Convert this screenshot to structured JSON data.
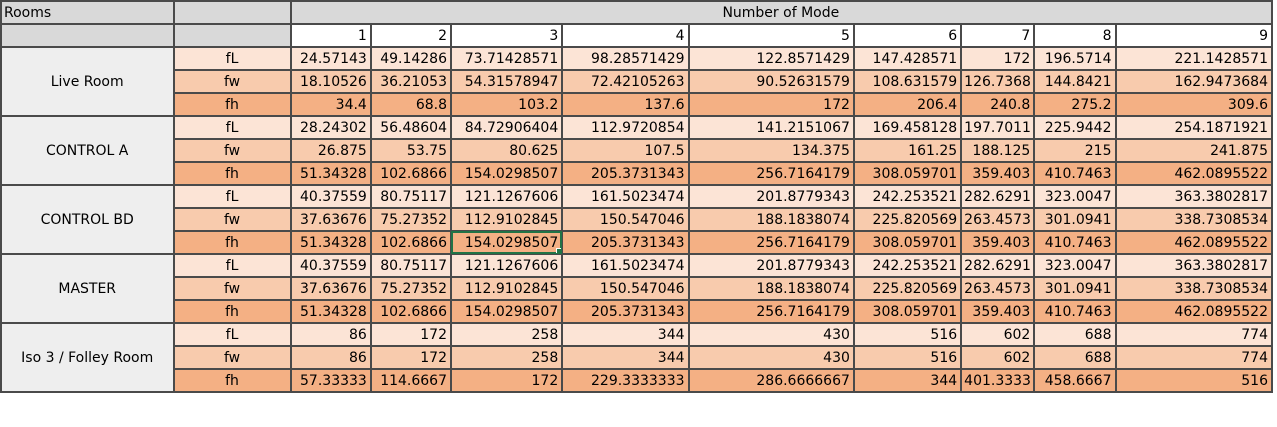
{
  "header": {
    "rooms_label": "Rooms",
    "mode_label": "Number of Mode",
    "mode_numbers": [
      "1",
      "2",
      "3",
      "4",
      "5",
      "6",
      "7",
      "8",
      "9"
    ]
  },
  "colors": {
    "fL": "#fce4d6",
    "fw": "#f8cbad",
    "fh": "#f4b084",
    "selection": "#217346"
  },
  "rooms": [
    {
      "name": "Live Room",
      "rows": [
        {
          "type": "fL",
          "values": [
            "24.57143",
            "49.14286",
            "73.71428571",
            "98.28571429",
            "122.8571429",
            "147.428571",
            "172",
            "196.5714",
            "221.1428571"
          ]
        },
        {
          "type": "fw",
          "values": [
            "18.10526",
            "36.21053",
            "54.31578947",
            "72.42105263",
            "90.52631579",
            "108.631579",
            "126.7368",
            "144.8421",
            "162.9473684"
          ]
        },
        {
          "type": "fh",
          "values": [
            "34.4",
            "68.8",
            "103.2",
            "137.6",
            "172",
            "206.4",
            "240.8",
            "275.2",
            "309.6"
          ]
        }
      ]
    },
    {
      "name": "CONTROL A",
      "rows": [
        {
          "type": "fL",
          "values": [
            "28.24302",
            "56.48604",
            "84.72906404",
            "112.9720854",
            "141.2151067",
            "169.458128",
            "197.7011",
            "225.9442",
            "254.1871921"
          ]
        },
        {
          "type": "fw",
          "values": [
            "26.875",
            "53.75",
            "80.625",
            "107.5",
            "134.375",
            "161.25",
            "188.125",
            "215",
            "241.875"
          ]
        },
        {
          "type": "fh",
          "values": [
            "51.34328",
            "102.6866",
            "154.0298507",
            "205.3731343",
            "256.7164179",
            "308.059701",
            "359.403",
            "410.7463",
            "462.0895522"
          ]
        }
      ]
    },
    {
      "name": "CONTROL BD",
      "rows": [
        {
          "type": "fL",
          "values": [
            "40.37559",
            "80.75117",
            "121.1267606",
            "161.5023474",
            "201.8779343",
            "242.253521",
            "282.6291",
            "323.0047",
            "363.3802817"
          ]
        },
        {
          "type": "fw",
          "values": [
            "37.63676",
            "75.27352",
            "112.9102845",
            "150.547046",
            "188.1838074",
            "225.820569",
            "263.4573",
            "301.0941",
            "338.7308534"
          ]
        },
        {
          "type": "fh",
          "values": [
            "51.34328",
            "102.6866",
            "154.0298507",
            "205.3731343",
            "256.7164179",
            "308.059701",
            "359.403",
            "410.7463",
            "462.0895522"
          ]
        }
      ]
    },
    {
      "name": "MASTER",
      "rows": [
        {
          "type": "fL",
          "values": [
            "40.37559",
            "80.75117",
            "121.1267606",
            "161.5023474",
            "201.8779343",
            "242.253521",
            "282.6291",
            "323.0047",
            "363.3802817"
          ]
        },
        {
          "type": "fw",
          "values": [
            "37.63676",
            "75.27352",
            "112.9102845",
            "150.547046",
            "188.1838074",
            "225.820569",
            "263.4573",
            "301.0941",
            "338.7308534"
          ]
        },
        {
          "type": "fh",
          "values": [
            "51.34328",
            "102.6866",
            "154.0298507",
            "205.3731343",
            "256.7164179",
            "308.059701",
            "359.403",
            "410.7463",
            "462.0895522"
          ]
        }
      ]
    },
    {
      "name": "Iso 3 / Folley Room",
      "rows": [
        {
          "type": "fL",
          "values": [
            "86",
            "172",
            "258",
            "344",
            "430",
            "516",
            "602",
            "688",
            "774"
          ]
        },
        {
          "type": "fw",
          "values": [
            "86",
            "172",
            "258",
            "344",
            "430",
            "516",
            "602",
            "688",
            "774"
          ]
        },
        {
          "type": "fh",
          "values": [
            "57.33333",
            "114.6667",
            "172",
            "229.3333333",
            "286.6666667",
            "344",
            "401.3333",
            "458.6667",
            "516"
          ]
        }
      ]
    }
  ],
  "selected_cell": {
    "room": "CONTROL BD",
    "type": "fh",
    "mode": "3"
  }
}
